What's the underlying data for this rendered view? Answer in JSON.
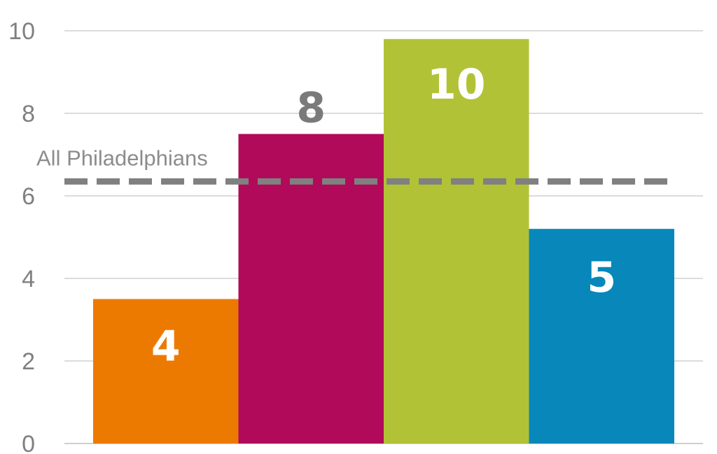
{
  "chart_data": {
    "type": "bar",
    "categories": [
      "",
      "",
      "",
      ""
    ],
    "values": [
      3.5,
      7.5,
      9.8,
      5.2
    ],
    "data_labels": [
      "4",
      "8",
      "10",
      "5"
    ],
    "colors": [
      "#ED7A00",
      "#B10A5A",
      "#B2C236",
      "#0787BA"
    ],
    "label_colors": [
      "#ffffff",
      "#7a7a7a",
      "#ffffff",
      "#ffffff"
    ],
    "ylim": [
      0,
      10
    ],
    "yticks": [
      "0",
      "2",
      "4",
      "6",
      "8",
      "10"
    ],
    "grid": true,
    "reference_line": {
      "label": "All Philadelphians",
      "value": 6.35,
      "color": "#808080",
      "style": "dashed"
    },
    "title": "",
    "xlabel": "",
    "ylabel": ""
  }
}
